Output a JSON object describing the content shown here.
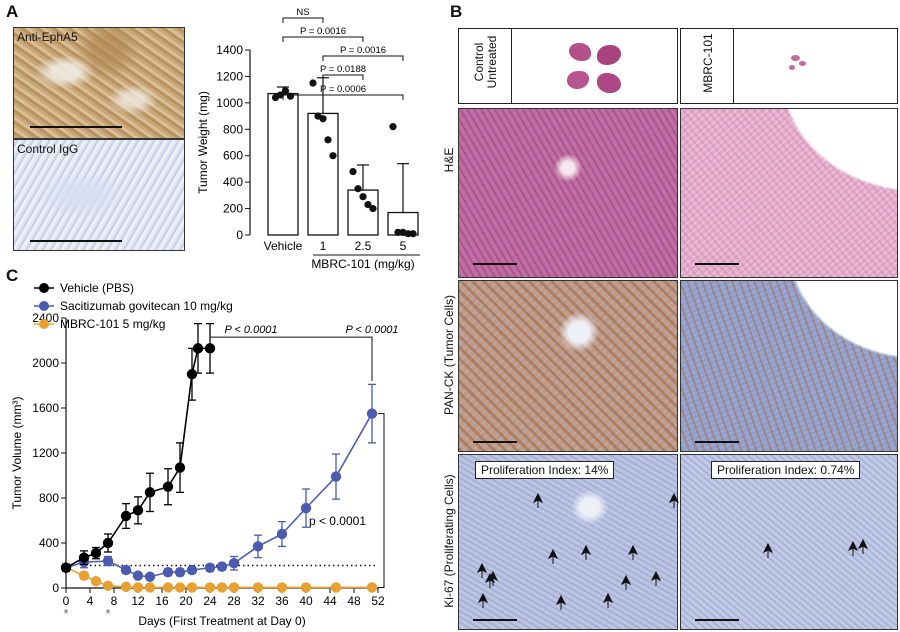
{
  "panels": {
    "a": "A",
    "b": "B",
    "c": "C"
  },
  "panel_a": {
    "stain_top": "Anti-EphA5",
    "stain_bottom": "Control IgG"
  },
  "panel_b": {
    "col_headers": [
      "Control\nUntreated",
      "MBRC-101"
    ],
    "row_labels": [
      "H&E",
      "PAN-CK (Tumor Cells)",
      "Ki-67 (Proliferating Cells)"
    ],
    "prolif_left": "Proliferation Index: 14%",
    "prolif_right": "Proliferation Index: 0.74%"
  },
  "chart_data": [
    {
      "type": "bar",
      "ylabel": "Tumor Weight (mg)",
      "xlabel": "MBRC-101 (mg/kg)",
      "categories": [
        "Vehicle",
        "1",
        "2.5",
        "5"
      ],
      "values": [
        1070,
        920,
        340,
        170
      ],
      "errors": [
        50,
        270,
        190,
        370
      ],
      "points": [
        [
          1040,
          1060,
          1090,
          1050
        ],
        [
          1150,
          900,
          880,
          720,
          600
        ],
        [
          480,
          350,
          290,
          230,
          200
        ],
        [
          820,
          20,
          20,
          10,
          10
        ]
      ],
      "ylim": [
        0,
        1400
      ],
      "yticks": [
        "0",
        "200",
        "400",
        "600",
        "800",
        "1000",
        "1200",
        "1400"
      ],
      "comparisons": [
        {
          "from": 0,
          "to": 1,
          "label": "NS"
        },
        {
          "from": 0,
          "to": 3,
          "label": "P = 0.0006"
        },
        {
          "from": 0,
          "to": 2,
          "label": "P = 0.0016"
        },
        {
          "from": 1,
          "to": 3,
          "label": "P = 0.0016"
        },
        {
          "from": 1,
          "to": 2,
          "label": "P = 0.0188"
        }
      ]
    },
    {
      "type": "line",
      "xlabel": "Days (First Treatment at Day 0)",
      "ylabel": "Tumor Volume (mm³)",
      "xlim": [
        0,
        52
      ],
      "ylim": [
        0,
        2400
      ],
      "xticks": [
        "0",
        "4",
        "8",
        "12",
        "16",
        "20",
        "24",
        "28",
        "32",
        "36",
        "40",
        "44",
        "48",
        "52"
      ],
      "yticks": [
        "0",
        "400",
        "800",
        "1200",
        "1600",
        "2000",
        "2400"
      ],
      "series": [
        {
          "name": "Vehicle (PBS)",
          "color": "#000000",
          "x": [
            0,
            3,
            5,
            7,
            10,
            12,
            14,
            17,
            19,
            21,
            22,
            24
          ],
          "y": [
            180,
            270,
            310,
            400,
            640,
            690,
            850,
            900,
            1070,
            1900,
            2130,
            2130
          ],
          "err": [
            30,
            60,
            50,
            80,
            110,
            120,
            170,
            160,
            220,
            230,
            220,
            220
          ]
        },
        {
          "name": "Sacitizumab govitecan 10 mg/kg",
          "color": "#4a5bb0",
          "x": [
            0,
            3,
            7,
            10,
            12,
            14,
            17,
            19,
            21,
            24,
            26,
            28,
            32,
            36,
            40,
            45,
            51
          ],
          "y": [
            180,
            230,
            240,
            160,
            110,
            100,
            140,
            140,
            160,
            180,
            190,
            220,
            370,
            480,
            710,
            990,
            1550
          ],
          "err": [
            30,
            50,
            40,
            30,
            20,
            20,
            30,
            30,
            30,
            30,
            30,
            60,
            100,
            110,
            170,
            200,
            260
          ]
        },
        {
          "name": "MBRC-101 5 mg/kg",
          "color": "#e8a033",
          "x": [
            0,
            3,
            5,
            7,
            10,
            12,
            14,
            17,
            19,
            21,
            24,
            26,
            28,
            32,
            36,
            40,
            45,
            51
          ],
          "y": [
            180,
            110,
            60,
            20,
            10,
            5,
            5,
            5,
            5,
            5,
            5,
            5,
            5,
            5,
            5,
            5,
            5,
            5
          ],
          "err": [
            30,
            30,
            20,
            10,
            5,
            0,
            0,
            0,
            0,
            0,
            0,
            0,
            0,
            0,
            0,
            0,
            0,
            0
          ]
        }
      ],
      "reference_line_y": 200,
      "annotations": [
        "P < 0.0001",
        "P < 0.0001",
        "p < 0.0001"
      ],
      "asterisks": [
        {
          "x": 0,
          "label": "*"
        },
        {
          "x": 7,
          "label": "*"
        }
      ]
    }
  ]
}
